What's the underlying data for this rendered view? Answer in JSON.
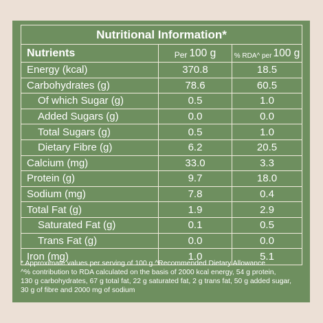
{
  "table": {
    "title": "Nutritional Information*",
    "header": {
      "nutrients": "Nutrients",
      "per_prefix": "Per",
      "per_unit": "100 g",
      "rda_prefix": "% RDA^ per",
      "rda_unit": "100 g"
    },
    "rows": [
      {
        "name": "Energy (kcal)",
        "per100": "370.8",
        "rda": "18.5",
        "sub": false
      },
      {
        "name": "Carbohydrates (g)",
        "per100": "78.6",
        "rda": "60.5",
        "sub": false
      },
      {
        "name": "Of which Sugar (g)",
        "per100": "0.5",
        "rda": "1.0",
        "sub": true
      },
      {
        "name": "Added Sugars (g)",
        "per100": "0.0",
        "rda": "0.0",
        "sub": true
      },
      {
        "name": "Total Sugars (g)",
        "per100": "0.5",
        "rda": "1.0",
        "sub": true
      },
      {
        "name": "Dietary Fibre (g)",
        "per100": "6.2",
        "rda": "20.5",
        "sub": true
      },
      {
        "name": "Calcium (mg)",
        "per100": "33.0",
        "rda": "3.3",
        "sub": false
      },
      {
        "name": "Protein (g)",
        "per100": "9.7",
        "rda": "18.0",
        "sub": false
      },
      {
        "name": "Sodium (mg)",
        "per100": "7.8",
        "rda": "0.4",
        "sub": false
      },
      {
        "name": "Total Fat (g)",
        "per100": "1.9",
        "rda": "2.9",
        "sub": false
      },
      {
        "name": "Saturated Fat (g)",
        "per100": "0.1",
        "rda": "0.5",
        "sub": true
      },
      {
        "name": "Trans Fat (g)",
        "per100": "0.0",
        "rda": "0.0",
        "sub": true
      },
      {
        "name": "Iron (mg)",
        "per100": "1.0",
        "rda": "5.1",
        "sub": false
      }
    ]
  },
  "footnote": {
    "line1": "* Approximate values per serving of 100 g  ^Recommended Dietary Allowance",
    "line2": "^% contribution to RDA calculated on the basis of 2000 kcal energy, 54 g protein,",
    "line3": "130 g carbohydrates, 67 g total fat, 22 g saturated fat, 2 g trans fat, 50 g added sugar,",
    "line4": "30 g of fibre and 2000 mg of sodium"
  },
  "colors": {
    "background": "#ece0d6",
    "panel": "#6e8f5f",
    "grid_lines": "#f3ecdf",
    "text": "#ffffff"
  }
}
